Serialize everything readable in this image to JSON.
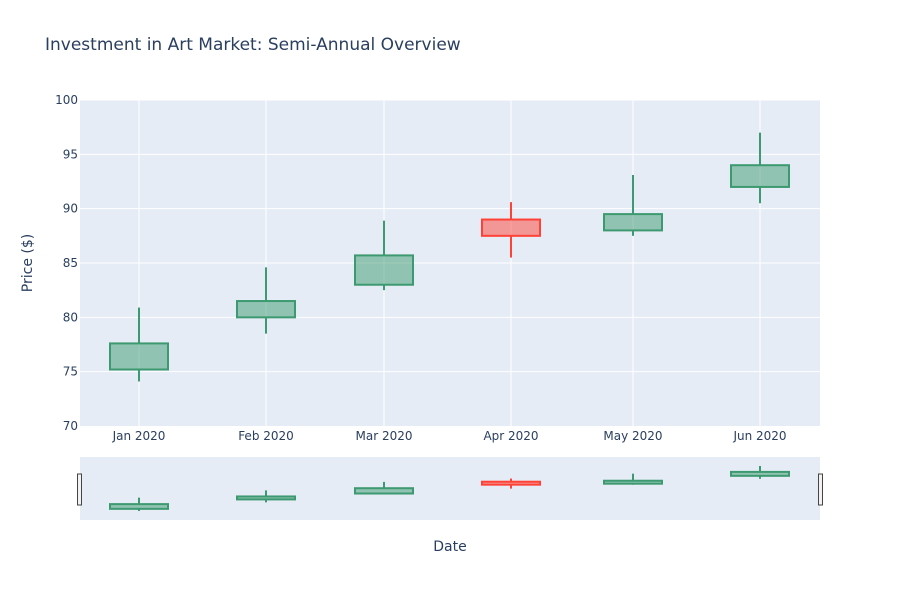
{
  "chart_data": {
    "type": "candlestick",
    "title": "Investment in Art Market: Semi-Annual Overview",
    "xlabel": "Date",
    "ylabel": "Price ($)",
    "ylim": [
      70,
      100
    ],
    "yticks": [
      70,
      75,
      80,
      85,
      90,
      95,
      100
    ],
    "categories": [
      "Jan 2020",
      "Feb 2020",
      "Mar 2020",
      "Apr 2020",
      "May 2020",
      "Jun 2020"
    ],
    "open": [
      75.2,
      80.0,
      83.0,
      89.0,
      88.0,
      92.0
    ],
    "high": [
      80.9,
      84.6,
      88.9,
      90.6,
      93.1,
      97.0
    ],
    "low": [
      74.1,
      78.5,
      82.5,
      85.5,
      87.5,
      90.5
    ],
    "close": [
      77.6,
      81.5,
      85.7,
      87.5,
      89.5,
      94.0
    ],
    "grid": true,
    "rangeslider": true,
    "colors": {
      "increasing": "#3d9970",
      "decreasing": "#ff4136",
      "plot_bg": "#e5ecf6",
      "grid": "#ffffff",
      "text": "#2a3f5f"
    }
  }
}
